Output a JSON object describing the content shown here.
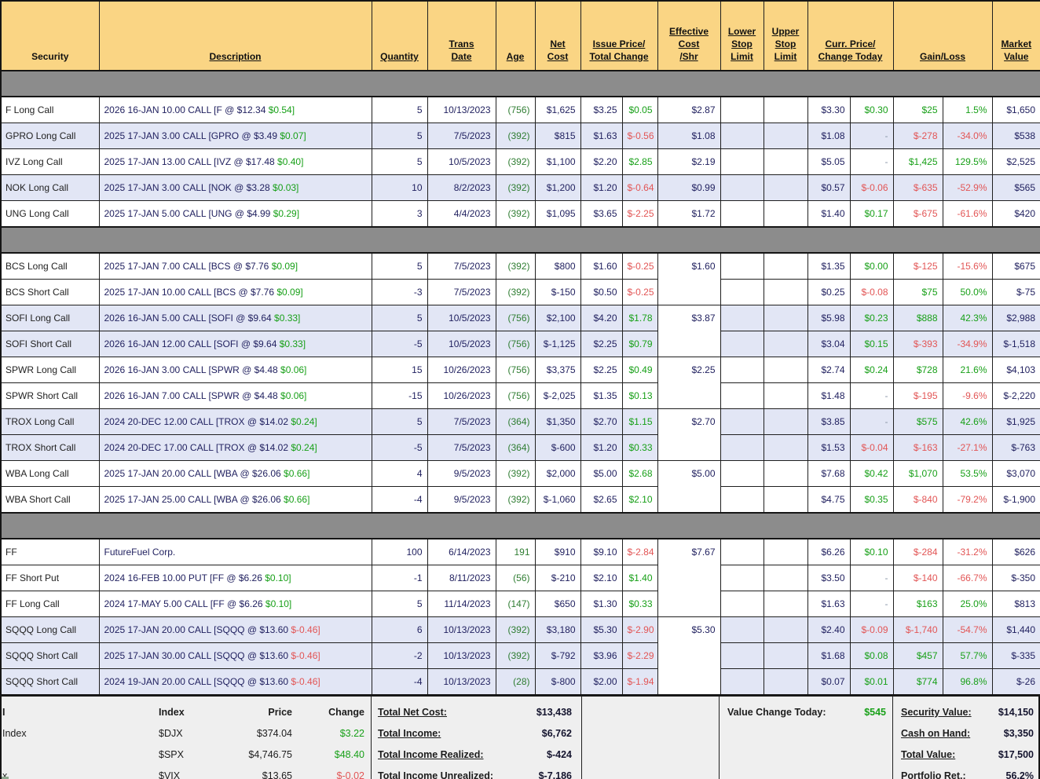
{
  "palette": {
    "header_bg": "#fad584",
    "separator_gray": "#8c8c8c",
    "row_shade": "#e2e6f5",
    "footer_bg": "#efefef",
    "positive_green": "#18a018",
    "negative_red": "#e25555",
    "age_green": "#2f7d32",
    "number_navy": "#1f1f5e"
  },
  "table": {
    "columns": [
      {
        "id": "security",
        "lines": [
          "Security"
        ],
        "underline": false
      },
      {
        "id": "description",
        "lines": [
          "Description"
        ]
      },
      {
        "id": "quantity",
        "lines": [
          "Quantity"
        ]
      },
      {
        "id": "trans-date",
        "lines": [
          "Trans",
          "Date"
        ]
      },
      {
        "id": "age",
        "lines": [
          "Age"
        ]
      },
      {
        "id": "net-cost",
        "lines": [
          "Net",
          "Cost"
        ]
      },
      {
        "id": "issue-price-total-change",
        "lines": [
          "Issue Price/",
          "Total Change"
        ],
        "span": 2
      },
      {
        "id": "effective-cost-shr",
        "lines": [
          "Effective",
          "Cost",
          "/Shr"
        ]
      },
      {
        "id": "lower-stop-limit",
        "lines": [
          "Lower",
          "Stop",
          "Limit"
        ]
      },
      {
        "id": "upper-stop-limit",
        "lines": [
          "Upper",
          "Stop",
          "Limit"
        ]
      },
      {
        "id": "curr-price-change-today",
        "lines": [
          "Curr. Price/",
          "Change Today"
        ],
        "span": 2
      },
      {
        "id": "gain-loss",
        "lines": [
          "Gain/Loss"
        ],
        "span": 2
      },
      {
        "id": "market-value",
        "lines": [
          "Market",
          "Value"
        ]
      }
    ],
    "groups": [
      {
        "rows": [
          {
            "security": "F Long Call",
            "desc": "2026 16-JAN 10.00 CALL [F @ $12.34 ",
            "desc_change": "$0.54]",
            "qty": "5",
            "date": "10/13/2023",
            "age": "(756)",
            "net_cost": "$1,625",
            "issue_price": "$3.25",
            "total_change": "$0.05",
            "eff_cost": "$2.87",
            "eff_span": 1,
            "curr_price": "$3.30",
            "change_today": "$0.30",
            "gain": "$25",
            "gain_pct": "1.5%",
            "market_value": "$1,650",
            "shade": false
          },
          {
            "security": "GPRO Long Call",
            "desc": "2025 17-JAN 3.00 CALL [GPRO @ $3.49 ",
            "desc_change": "$0.07]",
            "qty": "5",
            "date": "7/5/2023",
            "age": "(392)",
            "net_cost": "$815",
            "issue_price": "$1.63",
            "total_change": "$-0.56",
            "eff_cost": "$1.08",
            "eff_span": 1,
            "curr_price": "$1.08",
            "change_today": "-",
            "gain": "$-278",
            "gain_pct": "-34.0%",
            "market_value": "$538",
            "shade": true
          },
          {
            "security": "IVZ Long Call",
            "desc": "2025 17-JAN 13.00 CALL [IVZ @ $17.48 ",
            "desc_change": "$0.40]",
            "qty": "5",
            "date": "10/5/2023",
            "age": "(392)",
            "net_cost": "$1,100",
            "issue_price": "$2.20",
            "total_change": "$2.85",
            "eff_cost": "$2.19",
            "eff_span": 1,
            "curr_price": "$5.05",
            "change_today": "-",
            "gain": "$1,425",
            "gain_pct": "129.5%",
            "market_value": "$2,525",
            "shade": false
          },
          {
            "security": "NOK Long Call",
            "desc": "2025 17-JAN 3.00 CALL [NOK @ $3.28 ",
            "desc_change": "$0.03]",
            "qty": "10",
            "date": "8/2/2023",
            "age": "(392)",
            "net_cost": "$1,200",
            "issue_price": "$1.20",
            "total_change": "$-0.64",
            "eff_cost": "$0.99",
            "eff_span": 1,
            "curr_price": "$0.57",
            "change_today": "$-0.06",
            "gain": "$-635",
            "gain_pct": "-52.9%",
            "market_value": "$565",
            "shade": true
          },
          {
            "security": "UNG Long Call",
            "desc": "2025 17-JAN 5.00 CALL [UNG @ $4.99 ",
            "desc_change": "$0.29]",
            "qty": "3",
            "date": "4/4/2023",
            "age": "(392)",
            "net_cost": "$1,095",
            "issue_price": "$3.65",
            "total_change": "$-2.25",
            "eff_cost": "$1.72",
            "eff_span": 1,
            "curr_price": "$1.40",
            "change_today": "$0.17",
            "gain": "$-675",
            "gain_pct": "-61.6%",
            "market_value": "$420",
            "shade": false
          }
        ]
      },
      {
        "rows": [
          {
            "security": "BCS Long Call",
            "desc": "2025 17-JAN 7.00 CALL [BCS @ $7.76 ",
            "desc_change": "$0.09]",
            "qty": "5",
            "date": "7/5/2023",
            "age": "(392)",
            "net_cost": "$800",
            "issue_price": "$1.60",
            "total_change": "$-0.25",
            "eff_cost": "$1.60",
            "eff_span": 2,
            "curr_price": "$1.35",
            "change_today": "$0.00",
            "gain": "$-125",
            "gain_pct": "-15.6%",
            "market_value": "$675",
            "shade": false
          },
          {
            "security": "BCS Short Call",
            "desc": "2025 17-JAN 10.00 CALL [BCS @ $7.76 ",
            "desc_change": "$0.09]",
            "qty": "-3",
            "date": "7/5/2023",
            "age": "(392)",
            "net_cost": "$-150",
            "issue_price": "$0.50",
            "total_change": "$-0.25",
            "curr_price": "$0.25",
            "change_today": "$-0.08",
            "gain": "$75",
            "gain_pct": "50.0%",
            "market_value": "$-75",
            "shade": false
          },
          {
            "security": "SOFI Long Call",
            "desc": "2026 16-JAN 5.00 CALL [SOFI @ $9.64 ",
            "desc_change": "$0.33]",
            "qty": "5",
            "date": "10/5/2023",
            "age": "(756)",
            "net_cost": "$2,100",
            "issue_price": "$4.20",
            "total_change": "$1.78",
            "eff_cost": "$3.87",
            "eff_span": 2,
            "curr_price": "$5.98",
            "change_today": "$0.23",
            "gain": "$888",
            "gain_pct": "42.3%",
            "market_value": "$2,988",
            "shade": true
          },
          {
            "security": "SOFI Short Call",
            "desc": "2026 16-JAN 12.00 CALL [SOFI @ $9.64 ",
            "desc_change": "$0.33]",
            "qty": "-5",
            "date": "10/5/2023",
            "age": "(756)",
            "net_cost": "$-1,125",
            "issue_price": "$2.25",
            "total_change": "$0.79",
            "curr_price": "$3.04",
            "change_today": "$0.15",
            "gain": "$-393",
            "gain_pct": "-34.9%",
            "market_value": "$-1,518",
            "shade": true
          },
          {
            "security": "SPWR Long Call",
            "desc": "2026 16-JAN 3.00 CALL [SPWR @ $4.48 ",
            "desc_change": "$0.06]",
            "qty": "15",
            "date": "10/26/2023",
            "age": "(756)",
            "net_cost": "$3,375",
            "issue_price": "$2.25",
            "total_change": "$0.49",
            "eff_cost": "$2.25",
            "eff_span": 2,
            "curr_price": "$2.74",
            "change_today": "$0.24",
            "gain": "$728",
            "gain_pct": "21.6%",
            "market_value": "$4,103",
            "shade": false
          },
          {
            "security": "SPWR Short Call",
            "desc": "2026 16-JAN 7.00 CALL [SPWR @ $4.48 ",
            "desc_change": "$0.06]",
            "qty": "-15",
            "date": "10/26/2023",
            "age": "(756)",
            "net_cost": "$-2,025",
            "issue_price": "$1.35",
            "total_change": "$0.13",
            "curr_price": "$1.48",
            "change_today": "-",
            "gain": "$-195",
            "gain_pct": "-9.6%",
            "market_value": "$-2,220",
            "shade": false
          },
          {
            "security": "TROX Long Call",
            "desc": "2024 20-DEC 12.00 CALL [TROX @ $14.02 ",
            "desc_change": "$0.24]",
            "qty": "5",
            "date": "7/5/2023",
            "age": "(364)",
            "net_cost": "$1,350",
            "issue_price": "$2.70",
            "total_change": "$1.15",
            "eff_cost": "$2.70",
            "eff_span": 2,
            "curr_price": "$3.85",
            "change_today": "-",
            "gain": "$575",
            "gain_pct": "42.6%",
            "market_value": "$1,925",
            "shade": true
          },
          {
            "security": "TROX Short Call",
            "desc": "2024 20-DEC 17.00 CALL [TROX @ $14.02 ",
            "desc_change": "$0.24]",
            "qty": "-5",
            "date": "7/5/2023",
            "age": "(364)",
            "net_cost": "$-600",
            "issue_price": "$1.20",
            "total_change": "$0.33",
            "curr_price": "$1.53",
            "change_today": "$-0.04",
            "gain": "$-163",
            "gain_pct": "-27.1%",
            "market_value": "$-763",
            "shade": true
          },
          {
            "security": "WBA Long Call",
            "desc": "2025 17-JAN 20.00 CALL [WBA @ $26.06 ",
            "desc_change": "$0.66]",
            "qty": "4",
            "date": "9/5/2023",
            "age": "(392)",
            "net_cost": "$2,000",
            "issue_price": "$5.00",
            "total_change": "$2.68",
            "eff_cost": "$5.00",
            "eff_span": 2,
            "curr_price": "$7.68",
            "change_today": "$0.42",
            "gain": "$1,070",
            "gain_pct": "53.5%",
            "market_value": "$3,070",
            "shade": false
          },
          {
            "security": "WBA Short Call",
            "desc": "2025 17-JAN 25.00 CALL [WBA @ $26.06 ",
            "desc_change": "$0.66]",
            "qty": "-4",
            "date": "9/5/2023",
            "age": "(392)",
            "net_cost": "$-1,060",
            "issue_price": "$2.65",
            "total_change": "$2.10",
            "curr_price": "$4.75",
            "change_today": "$0.35",
            "gain": "$-840",
            "gain_pct": "-79.2%",
            "market_value": "$-1,900",
            "shade": false
          }
        ]
      },
      {
        "rows": [
          {
            "security": "FF",
            "desc": "FutureFuel Corp.",
            "desc_change": "",
            "qty": "100",
            "date": "6/14/2023",
            "age": "191",
            "net_cost": "$910",
            "issue_price": "$9.10",
            "total_change": "$-2.84",
            "eff_cost": "$7.67",
            "eff_span": 3,
            "curr_price": "$6.26",
            "change_today": "$0.10",
            "gain": "$-284",
            "gain_pct": "-31.2%",
            "market_value": "$626",
            "shade": false
          },
          {
            "security": "FF Short Put",
            "desc": "2024 16-FEB 10.00 PUT [FF @ $6.26 ",
            "desc_change": "$0.10]",
            "qty": "-1",
            "date": "8/11/2023",
            "age": "(56)",
            "net_cost": "$-210",
            "issue_price": "$2.10",
            "total_change": "$1.40",
            "curr_price": "$3.50",
            "change_today": "-",
            "gain": "$-140",
            "gain_pct": "-66.7%",
            "market_value": "$-350",
            "shade": false
          },
          {
            "security": "FF Long Call",
            "desc": "2024 17-MAY 5.00 CALL [FF @ $6.26 ",
            "desc_change": "$0.10]",
            "qty": "5",
            "date": "11/14/2023",
            "age": "(147)",
            "net_cost": "$650",
            "issue_price": "$1.30",
            "total_change": "$0.33",
            "curr_price": "$1.63",
            "change_today": "-",
            "gain": "$163",
            "gain_pct": "25.0%",
            "market_value": "$813",
            "shade": false
          },
          {
            "security": "SQQQ Long Call",
            "desc": "2025 17-JAN 20.00 CALL [SQQQ @ $13.60 ",
            "desc_change": "$-0.46]",
            "qty": "6",
            "date": "10/13/2023",
            "age": "(392)",
            "net_cost": "$3,180",
            "issue_price": "$5.30",
            "total_change": "$-2.90",
            "eff_cost": "$5.30",
            "eff_span": 3,
            "curr_price": "$2.40",
            "change_today": "$-0.09",
            "gain": "$-1,740",
            "gain_pct": "-54.7%",
            "market_value": "$1,440",
            "shade": true
          },
          {
            "security": "SQQQ Short Call",
            "desc": "2025 17-JAN 30.00 CALL [SQQQ @ $13.60 ",
            "desc_change": "$-0.46]",
            "qty": "-2",
            "date": "10/13/2023",
            "age": "(392)",
            "net_cost": "$-792",
            "issue_price": "$3.96",
            "total_change": "$-2.29",
            "curr_price": "$1.68",
            "change_today": "$0.08",
            "gain": "$457",
            "gain_pct": "57.7%",
            "market_value": "$-335",
            "shade": true
          },
          {
            "security": "SQQQ Short Call",
            "desc": "2024 19-JAN 20.00 CALL [SQQQ @ $13.60 ",
            "desc_change": "$-0.46]",
            "qty": "-4",
            "date": "10/13/2023",
            "age": "(28)",
            "net_cost": "$-800",
            "issue_price": "$2.00",
            "total_change": "$-1.94",
            "curr_price": "$0.07",
            "change_today": "$0.01",
            "gain": "$774",
            "gain_pct": "96.8%",
            "market_value": "$-26",
            "shade": true
          }
        ]
      }
    ]
  },
  "footer": {
    "indices": {
      "headers": {
        "frag": "I",
        "index": "Index",
        "price": "Price",
        "change": "Change"
      },
      "rows": [
        {
          "frag": "Index",
          "index": "$DJX",
          "price": "$374.04",
          "change": "$3.22"
        },
        {
          "frag": "",
          "index": "$SPX",
          "price": "$4,746.75",
          "change": "$48.40"
        },
        {
          "frag": "x",
          "index": "$VIX",
          "price": "$13.65",
          "change": "$-0.02"
        }
      ]
    },
    "totals": [
      {
        "label": "Total Net Cost:",
        "value": "$13,438"
      },
      {
        "label": "Total Income:",
        "value": "$6,762"
      },
      {
        "label": "Total Income Realized:",
        "value": "$-424"
      },
      {
        "label": "Total Income Unrealized:",
        "value": "$-7,186"
      }
    ],
    "value_change": {
      "label": "Value Change Today:",
      "value": "$545"
    },
    "portfolio": [
      {
        "label": "Security Value:",
        "value": "$14,150",
        "colored": false
      },
      {
        "label": "Cash on Hand:",
        "value": "$3,350",
        "colored": false
      },
      {
        "label": "Total Value:",
        "value": "$17,500",
        "colored": false
      },
      {
        "label": "Portfolio Ret.:",
        "value": "56.2%",
        "colored": true
      }
    ]
  }
}
